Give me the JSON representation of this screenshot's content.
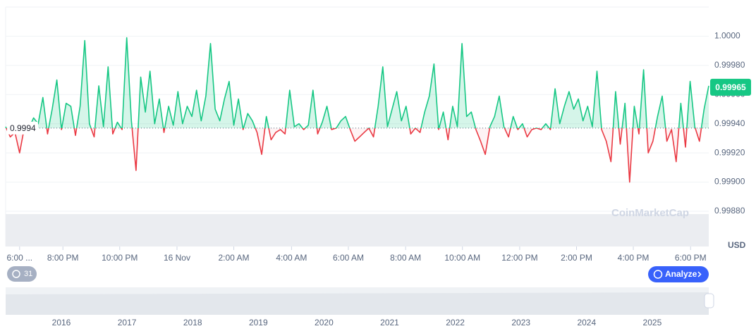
{
  "chart_data": {
    "type": "line",
    "values": [
      0.99938,
      0.99931,
      0.99934,
      0.9992,
      0.99937,
      0.99937,
      0.99944,
      0.9994,
      0.99958,
      0.99933,
      0.9995,
      0.9997,
      0.99936,
      0.99954,
      0.99952,
      0.99932,
      0.99952,
      0.99997,
      0.9994,
      0.99931,
      0.99966,
      0.99938,
      0.99979,
      0.99933,
      0.99941,
      0.99936,
      0.99999,
      0.99942,
      0.99908,
      0.99972,
      0.99948,
      0.99976,
      0.9994,
      0.99957,
      0.99934,
      0.99952,
      0.99939,
      0.99962,
      0.9994,
      0.99952,
      0.99945,
      0.99963,
      0.99942,
      0.99959,
      0.99995,
      0.9995,
      0.99942,
      0.99957,
      0.99969,
      0.99939,
      0.99957,
      0.99936,
      0.99947,
      0.99942,
      0.99934,
      0.99919,
      0.99945,
      0.99929,
      0.99934,
      0.99936,
      0.99933,
      0.99963,
      0.99938,
      0.9994,
      0.99936,
      0.99939,
      0.99963,
      0.99933,
      0.99941,
      0.99952,
      0.99936,
      0.99937,
      0.99942,
      0.99945,
      0.99936,
      0.99928,
      0.99931,
      0.99934,
      0.99937,
      0.99931,
      0.99952,
      0.99979,
      0.99938,
      0.9995,
      0.99962,
      0.99942,
      0.99952,
      0.99933,
      0.99937,
      0.99934,
      0.99948,
      0.99959,
      0.99981,
      0.99936,
      0.99948,
      0.99929,
      0.99952,
      0.99938,
      0.99995,
      0.99945,
      0.99948,
      0.99936,
      0.99928,
      0.99919,
      0.99938,
      0.99945,
      0.99959,
      0.99938,
      0.99931,
      0.99945,
      0.99936,
      0.9994,
      0.99931,
      0.99936,
      0.99937,
      0.99936,
      0.9994,
      0.99936,
      0.99964,
      0.9994,
      0.99952,
      0.99962,
      0.9995,
      0.99957,
      0.99942,
      0.99952,
      0.99938,
      0.99976,
      0.99936,
      0.99928,
      0.99914,
      0.99962,
      0.99926,
      0.99954,
      0.999,
      0.99952,
      0.99933,
      0.99977,
      0.9992,
      0.99928,
      0.99945,
      0.99959,
      0.99928,
      0.99936,
      0.99914,
      0.99954,
      0.99924,
      0.99969,
      0.99938,
      0.99928,
      0.9995,
      0.99966
    ],
    "up_color": "#16c784",
    "down_color": "#ea3943",
    "baseline": {
      "value": 0.99937,
      "label": "0.9994"
    },
    "current_price": 0.99965,
    "xlim": [
      0,
      151
    ],
    "xticks": [
      {
        "value": 3,
        "label": "6:00 ..."
      },
      {
        "value": 12.3,
        "label": "8:00 PM"
      },
      {
        "value": 24.5,
        "label": "10:00 PM"
      },
      {
        "value": 36.8,
        "label": "16 Nov"
      },
      {
        "value": 49,
        "label": "2:00 AM"
      },
      {
        "value": 61.4,
        "label": "4:00 AM"
      },
      {
        "value": 73.6,
        "label": "6:00 AM"
      },
      {
        "value": 85.9,
        "label": "8:00 AM"
      },
      {
        "value": 98.1,
        "label": "10:00 AM"
      },
      {
        "value": 110.4,
        "label": "12:00 PM"
      },
      {
        "value": 122.6,
        "label": "2:00 PM"
      },
      {
        "value": 134.8,
        "label": "4:00 PM"
      },
      {
        "value": 147.1,
        "label": "6:00 PM"
      }
    ],
    "ylim": [
      0.9988,
      1.0002
    ],
    "yticks": [
      {
        "value": 0.9988,
        "label": "0.99880"
      },
      {
        "value": 0.999,
        "label": "0.99900"
      },
      {
        "value": 0.9992,
        "label": "0.99920"
      },
      {
        "value": 0.9994,
        "label": "0.99940"
      },
      {
        "value": 0.9996,
        "label": "0.99960"
      },
      {
        "value": 0.9998,
        "label": "0.99980"
      },
      {
        "value": 1,
        "label": "1.0000"
      }
    ],
    "grid": true,
    "currency": "USD",
    "watermark": "CoinMarketCap",
    "badge": "31",
    "analyze_button": "Analyze",
    "navigator_years": [
      "2016",
      "2017",
      "2018",
      "2019",
      "2020",
      "2021",
      "2022",
      "2023",
      "2024",
      "2025"
    ]
  }
}
